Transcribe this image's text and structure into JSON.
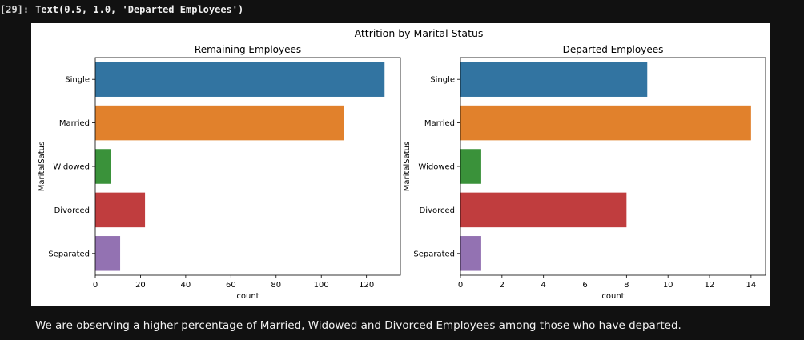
{
  "cell": {
    "prompt": "[29]:",
    "output_text": "Text(0.5, 1.0, 'Departed Employees')"
  },
  "figure": {
    "suptitle": "Attrition by Marital Status"
  },
  "chart_data": [
    {
      "type": "bar",
      "orientation": "horizontal",
      "title": "Remaining Employees",
      "xlabel": "count",
      "ylabel": "MaritalSatus",
      "categories": [
        "Single",
        "Married",
        "Widowed",
        "Divorced",
        "Separated"
      ],
      "values": [
        128,
        110,
        7,
        22,
        11
      ],
      "colors": [
        "#3274a1",
        "#e1812c",
        "#3a923a",
        "#c03d3e",
        "#9372b2"
      ],
      "xlim": [
        0,
        135
      ],
      "xticks": [
        0,
        20,
        40,
        60,
        80,
        100,
        120
      ]
    },
    {
      "type": "bar",
      "orientation": "horizontal",
      "title": "Departed Employees",
      "xlabel": "count",
      "ylabel": "MaritalSatus",
      "categories": [
        "Single",
        "Married",
        "Widowed",
        "Divorced",
        "Separated"
      ],
      "values": [
        9,
        14,
        1,
        8,
        1
      ],
      "colors": [
        "#3274a1",
        "#e1812c",
        "#3a923a",
        "#c03d3e",
        "#9372b2"
      ],
      "xlim": [
        0,
        14.7
      ],
      "xticks": [
        0,
        2,
        4,
        6,
        8,
        10,
        12,
        14
      ]
    }
  ],
  "markdown": {
    "text": "We are observing a higher percentage of Married, Widowed and Divorced Employees among those who have departed."
  }
}
